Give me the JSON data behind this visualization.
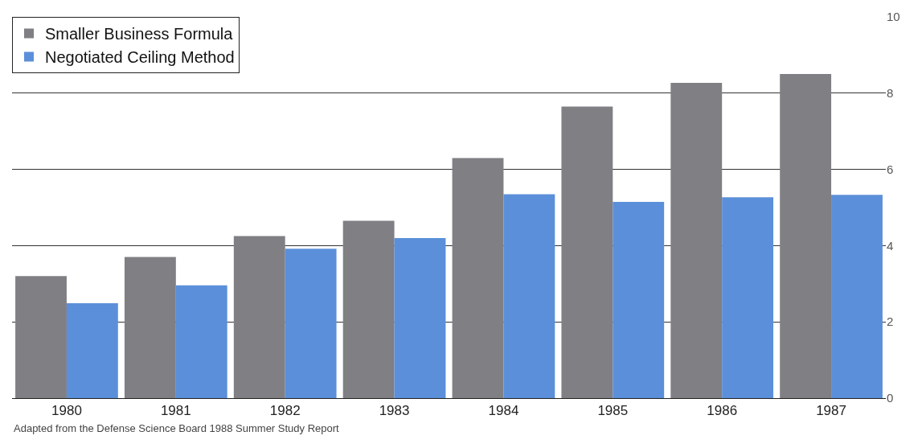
{
  "chart_data": {
    "type": "bar",
    "categories": [
      "1980",
      "1981",
      "1982",
      "1983",
      "1984",
      "1985",
      "1986",
      "1987"
    ],
    "series": [
      {
        "name": "Smaller Business Formula",
        "color": "#7f7f84",
        "values": [
          3.2,
          3.7,
          4.25,
          4.65,
          6.3,
          7.65,
          8.27,
          8.5
        ]
      },
      {
        "name": "Negotiated Ceiling Method",
        "color": "#5b8fd9",
        "values": [
          2.49,
          2.96,
          3.92,
          4.2,
          5.35,
          5.15,
          5.27,
          5.33
        ]
      }
    ],
    "ylim": [
      0,
      10
    ],
    "yticks": [
      0,
      2,
      4,
      6,
      8,
      10
    ],
    "grid": "y",
    "legend": "top left",
    "annotations": [
      "Adapted from the Defense Science Board 1988 Summer Study Report"
    ]
  }
}
